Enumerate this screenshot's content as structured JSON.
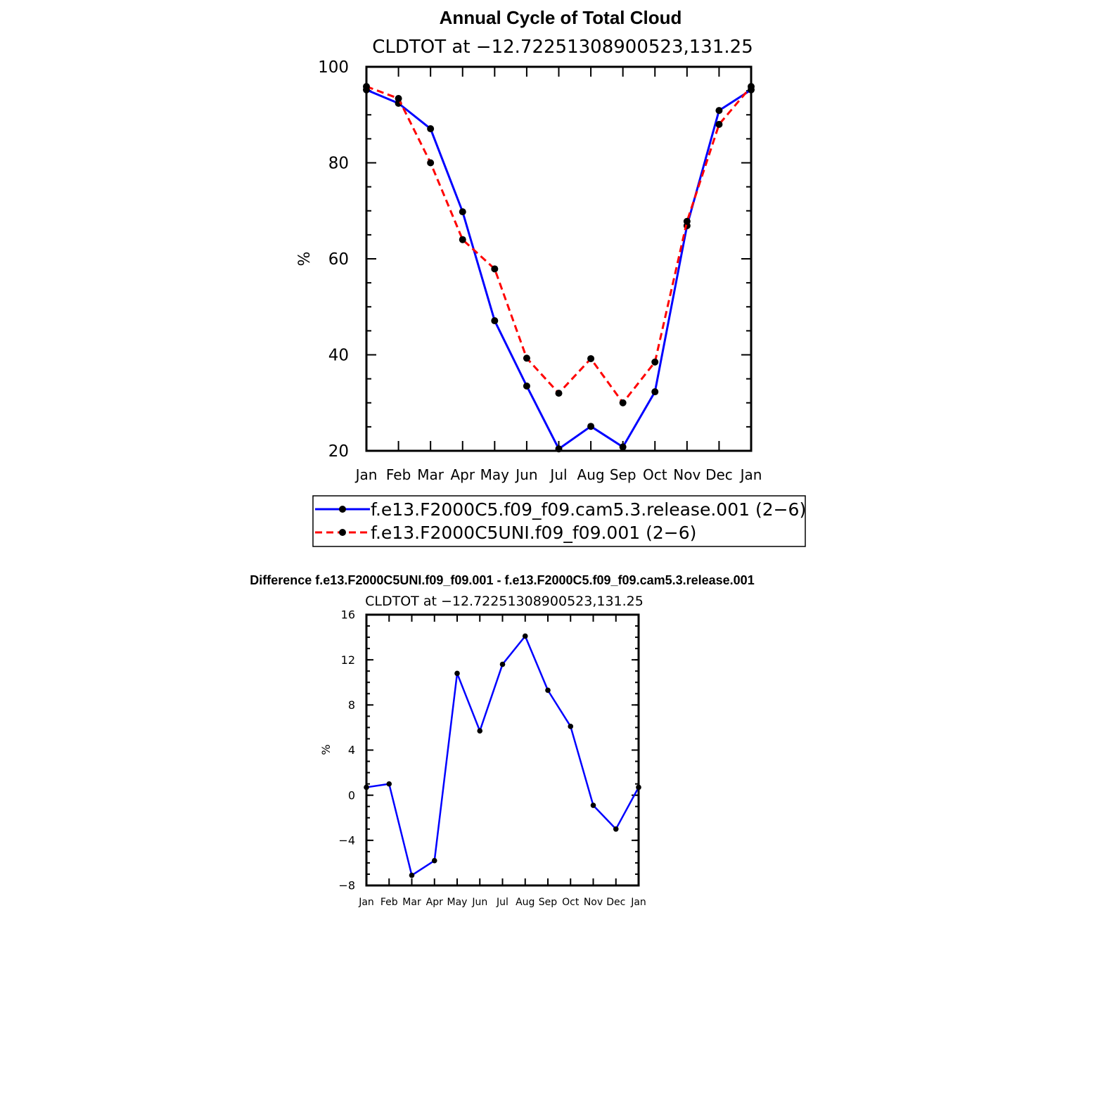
{
  "chart_data": [
    {
      "type": "line",
      "title": "Annual Cycle of Total Cloud",
      "subtitle": "CLDTOT at −12.72251308900523,131.25",
      "xlabel": "",
      "ylabel": "%",
      "categories": [
        "Jan",
        "Feb",
        "Mar",
        "Apr",
        "May",
        "Jun",
        "Jul",
        "Aug",
        "Sep",
        "Oct",
        "Nov",
        "Dec",
        "Jan"
      ],
      "ylim": [
        20,
        100
      ],
      "yticks": [
        "100",
        "80",
        "60",
        "40",
        "20"
      ],
      "legend": "bottom",
      "series": [
        {
          "name": "f.e13.F2000C5.f09_f09.cam5.3.release.001 (2−6)",
          "color": "#0000ff",
          "style": "solid",
          "values": [
            95.2,
            92.4,
            87.1,
            69.8,
            47.1,
            33.5,
            20.4,
            25.1,
            20.8,
            32.3,
            66.9,
            90.9,
            95.2
          ]
        },
        {
          "name": "f.e13.F2000C5UNI.f09_f09.001 (2−6)",
          "color": "#ff0000",
          "style": "dashed",
          "values": [
            95.9,
            93.4,
            80.0,
            64.0,
            57.9,
            39.3,
            32.0,
            39.2,
            30.0,
            38.5,
            67.8,
            88.0,
            95.9
          ]
        }
      ]
    },
    {
      "type": "line",
      "title": "Difference f.e13.F2000C5UNI.f09_f09.001 - f.e13.F2000C5.f09_f09.cam5.3.release.001",
      "subtitle": "CLDTOT at −12.72251308900523,131.25",
      "xlabel": "",
      "ylabel": "%",
      "categories": [
        "Jan",
        "Feb",
        "Mar",
        "Apr",
        "May",
        "Jun",
        "Jul",
        "Aug",
        "Sep",
        "Oct",
        "Nov",
        "Dec",
        "Jan"
      ],
      "ylim": [
        -8,
        16
      ],
      "yticks": [
        "16",
        "12",
        "8",
        "4",
        "0",
        "−4",
        "−8"
      ],
      "series": [
        {
          "name": "Difference",
          "color": "#0000ff",
          "style": "solid",
          "values": [
            0.7,
            1.0,
            -7.1,
            -5.8,
            10.8,
            5.7,
            11.6,
            14.1,
            9.3,
            6.1,
            -0.9,
            -3.0,
            0.7
          ]
        }
      ]
    }
  ]
}
